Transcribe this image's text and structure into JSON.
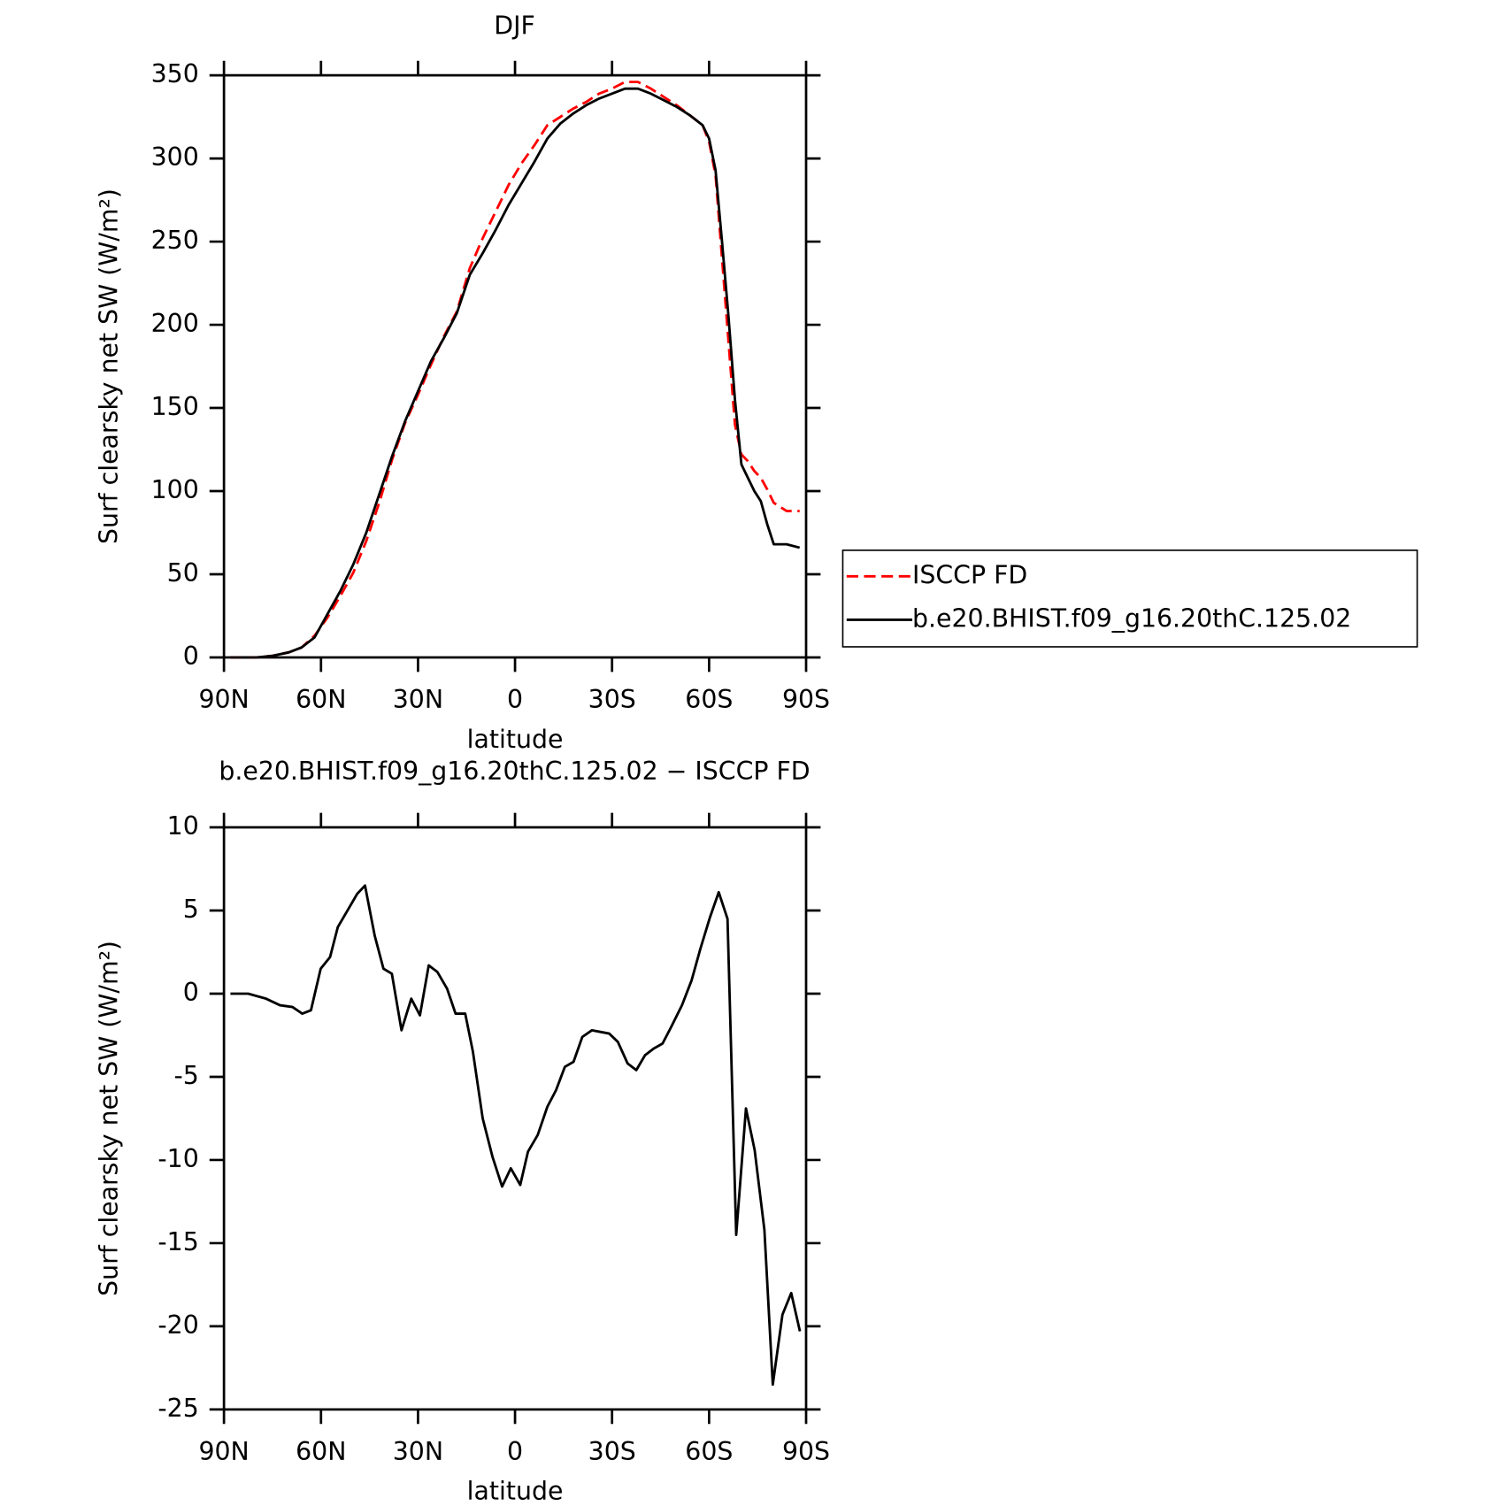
{
  "chart_data": [
    {
      "type": "line",
      "title": "DJF",
      "xlabel": "latitude",
      "ylabel": "Surf clearsky net SW (W/m²)",
      "x": [
        88,
        80,
        75,
        70,
        66,
        62,
        58,
        54,
        50,
        46,
        42,
        38,
        34,
        30,
        26,
        22,
        18,
        14,
        10,
        6,
        2,
        -2,
        -6,
        -10,
        -14,
        -18,
        -22,
        -26,
        -30,
        -34,
        -38,
        -42,
        -46,
        -50,
        -54,
        -58,
        -60,
        -62,
        -64,
        -66,
        -68,
        -70,
        -72,
        -74,
        -76,
        -78,
        -80,
        -84,
        -88
      ],
      "series": [
        {
          "name": "ISCCP FD",
          "color": "#ff0000",
          "dash": true,
          "values": [
            0,
            0,
            1,
            3,
            6,
            13,
            24,
            37,
            51,
            70,
            93,
            119,
            141,
            158,
            176,
            193,
            208,
            234,
            252,
            268,
            284,
            297,
            308,
            320,
            325,
            330,
            334,
            339,
            342,
            346,
            346,
            342,
            337,
            332,
            326,
            320,
            310,
            290,
            240,
            190,
            140,
            122,
            118,
            112,
            108,
            101,
            93,
            88,
            88
          ]
        },
        {
          "name": "b.e20.BHIST.f09_g16.20thC.125.02",
          "color": "#000000",
          "dash": false,
          "values": [
            0,
            0,
            1,
            3,
            6,
            12,
            26,
            40,
            56,
            75,
            98,
            121,
            142,
            160,
            178,
            192,
            207,
            230,
            243,
            257,
            272,
            285,
            298,
            312,
            321,
            327,
            332,
            336,
            339,
            342,
            342,
            339,
            335,
            331,
            326,
            320,
            312,
            293,
            250,
            205,
            155,
            116,
            108,
            100,
            94,
            80,
            68,
            68,
            66
          ]
        }
      ],
      "xlim": [
        90,
        -90
      ],
      "xticks": [
        {
          "value": 90,
          "label": "90N"
        },
        {
          "value": 60,
          "label": "60N"
        },
        {
          "value": 30,
          "label": "30N"
        },
        0,
        {
          "value": -30,
          "label": "30S"
        },
        {
          "value": -60,
          "label": "60S"
        },
        {
          "value": -90,
          "label": "90S"
        }
      ],
      "ylim": [
        0,
        350
      ],
      "yticks": [
        0,
        50,
        100,
        150,
        200,
        250,
        300,
        350
      ],
      "legend": "outside-right"
    },
    {
      "type": "line",
      "title": "b.e20.BHIST.f09_g16.20thC.125.02 − ISCCP FD",
      "xlabel": "latitude",
      "ylabel": "Surf clearsky net SW (W/m²)",
      "x": [
        88,
        82.5,
        77,
        72.7,
        68.8,
        65.8,
        63.1,
        60.1,
        57.2,
        54.8,
        51.8,
        48.8,
        46.4,
        43.4,
        40.7,
        38.1,
        35.1,
        32.1,
        29.4,
        26.7,
        24,
        21,
        18.4,
        15.4,
        13,
        10,
        7,
        4,
        1.3,
        -1.6,
        -4,
        -7,
        -10,
        -12.7,
        -15.4,
        -18.1,
        -20.8,
        -23.8,
        -26.4,
        -29.1,
        -31.8,
        -34.8,
        -37.5,
        -40.2,
        -42.9,
        -45.6,
        -48.3,
        -51.6,
        -54.6,
        -57.3,
        -60.3,
        -63,
        -65.7,
        -68.4,
        -71.4,
        -74.1,
        -77.1,
        -79.7,
        -82.7,
        -85.4,
        -88.1
      ],
      "series": [
        {
          "color": "#000000",
          "dash": false,
          "values": [
            0,
            0,
            -0.3,
            -0.7,
            -0.8,
            -1.2,
            -1,
            1.5,
            2.2,
            4,
            5,
            6,
            6.5,
            3.5,
            1.5,
            1.2,
            -2.2,
            -0.3,
            -1.3,
            1.7,
            1.3,
            0.3,
            -1.2,
            -1.2,
            -3.5,
            -7.5,
            -9.8,
            -11.6,
            -10.5,
            -11.5,
            -9.5,
            -8.5,
            -6.8,
            -5.8,
            -4.4,
            -4.1,
            -2.6,
            -2.2,
            -2.3,
            -2.4,
            -2.9,
            -4.2,
            -4.6,
            -3.7,
            -3.3,
            -3,
            -2,
            -0.7,
            0.8,
            2.7,
            4.6,
            6.1,
            4.5,
            -14.5,
            -6.9,
            -9.4,
            -14.2,
            -23.5,
            -19.3,
            -18,
            -20.3
          ]
        }
      ],
      "xlim": [
        90,
        -90
      ],
      "xticks": [
        {
          "value": 90,
          "label": "90N"
        },
        {
          "value": 60,
          "label": "60N"
        },
        {
          "value": 30,
          "label": "30N"
        },
        0,
        {
          "value": -30,
          "label": "30S"
        },
        {
          "value": -60,
          "label": "60S"
        },
        {
          "value": -90,
          "label": "90S"
        }
      ],
      "ylim": [
        -25,
        10
      ],
      "yticks": [
        -25,
        -20,
        -15,
        -10,
        -5,
        0,
        5,
        10
      ]
    }
  ]
}
